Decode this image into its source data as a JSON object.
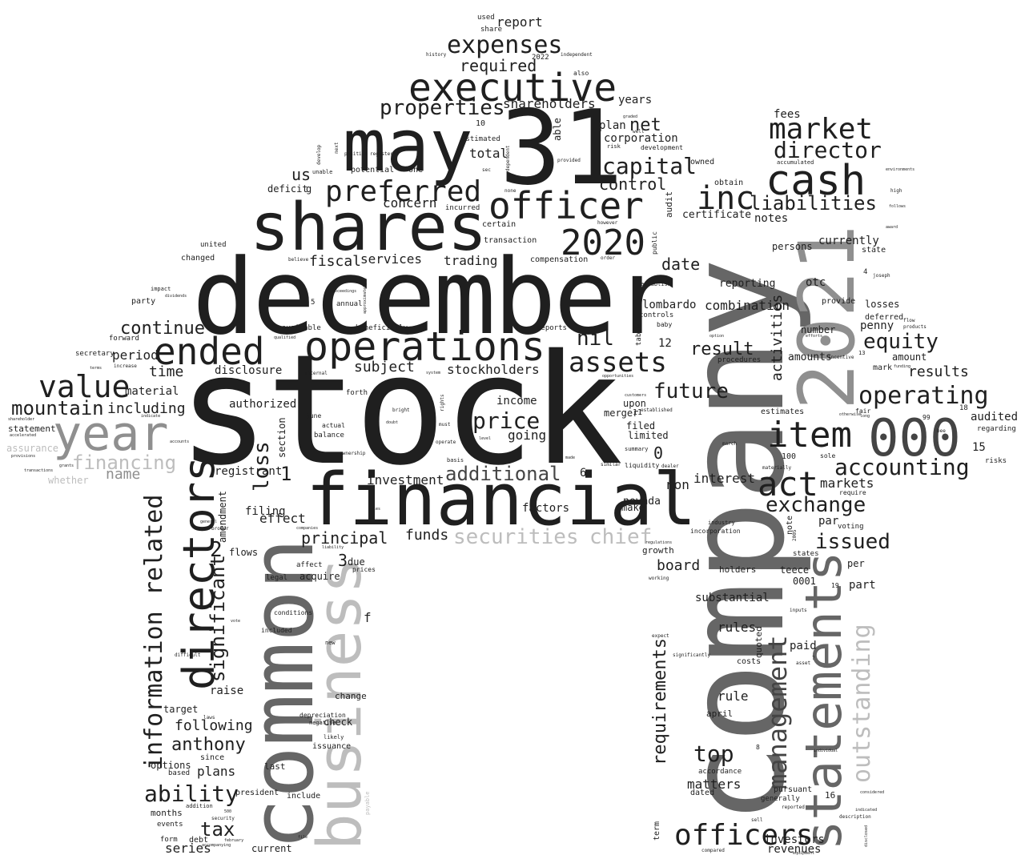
{
  "cloud": {
    "words": {
      "stock": "stock",
      "company": "company",
      "december": "december",
      "common": "common",
      "shares": "shares",
      "thirty_one": "31",
      "may": "may",
      "financial": "financial",
      "business": "business",
      "year_2021": "2021",
      "statements": "statements",
      "executive": "executive",
      "operations": "operations",
      "officer": "officer",
      "cash": "cash",
      "inc": "inc",
      "directors": "directors",
      "ended": "ended",
      "year": "year",
      "preferred": "preferred",
      "year_2020": "2020",
      "item": "item",
      "thousand": "000",
      "management": "management",
      "value": "value",
      "market": "market",
      "director": "director",
      "officers": "officers",
      "assets": "assets",
      "act": "act",
      "outstanding": "outstanding",
      "expenses": "expenses",
      "liabilities": "liabilities",
      "capital": "capital",
      "information": "information",
      "related": "related",
      "operating": "operating",
      "accounting": "accounting",
      "exchange": "exchange",
      "mountain": "mountain",
      "financing": "financing",
      "securities": "securities",
      "chief": "chief",
      "additional": "additional",
      "price": "price",
      "future": "future",
      "equity": "equity",
      "properties": "properties",
      "continue": "continue",
      "significant": "significant",
      "ability": "ability",
      "anthony": "anthony",
      "requirements": "requirements",
      "top": "top",
      "loss": "loss",
      "issued": "issued",
      "result": "result",
      "nil": "nil",
      "net": "net",
      "control": "control",
      "required": "required",
      "shareholders": "shareholders",
      "tax": "tax",
      "including": "including",
      "name": "name",
      "time": "time",
      "period": "period",
      "subject": "subject",
      "stockholders": "stockholders",
      "fiscal": "fiscal",
      "services": "services",
      "trading": "trading",
      "concern": "concern",
      "us": "us",
      "date": "date",
      "combination": "combination",
      "results": "results",
      "penny": "penny",
      "activities": "activities",
      "interest": "interest",
      "markets": "markets",
      "investment": "investment",
      "principal": "principal",
      "funds": "funds",
      "effect": "effect",
      "following": "following",
      "plans": "plans",
      "series": "series",
      "board": "board",
      "substantial": "substantial",
      "rules": "rules",
      "rule": "rule",
      "matters": "matters",
      "investors": "investors",
      "revenues": "revenues",
      "report": "report",
      "years": "years",
      "audited": "audited",
      "material": "material",
      "authorized": "authorized",
      "disclosure": "disclosure",
      "income": "income",
      "going": "going",
      "certificate": "certificate",
      "notes": "notes",
      "currently": "currently",
      "total": "total",
      "corporation": "corporation",
      "plan": "plan",
      "fees": "fees",
      "reporting": "reporting",
      "otc": "otc",
      "lombardo": "lombardo",
      "amounts": "amounts",
      "losses": "losses",
      "number": "number",
      "amount": "amount",
      "deferred": "deferred",
      "mark": "mark",
      "estimates": "estimates",
      "filed": "filed",
      "limited": "limited",
      "merger": "merger",
      "upon": "upon",
      "nevada": "nevada",
      "non": "non",
      "factors": "factors",
      "make": "make",
      "growth": "growth",
      "holders": "holders",
      "teece": "teece",
      "part": "part",
      "per": "per",
      "par": "par",
      "voting": "voting",
      "paid": "paid",
      "quoted": "quoted",
      "costs": "costs",
      "april": "april",
      "dated": "dated",
      "accordance": "accordance",
      "pursuant": "pursuant",
      "generally": "generally",
      "term": "term",
      "raise": "raise",
      "target": "target",
      "options": "options",
      "based": "based",
      "since": "since",
      "last": "last",
      "include": "include",
      "president": "president",
      "months": "months",
      "events": "events",
      "form": "form",
      "debt": "debt",
      "current": "current",
      "issuance": "issuance",
      "check": "check",
      "change": "change",
      "depreciation": "depreciation",
      "negative": "negative",
      "likely": "likely",
      "acquire": "acquire",
      "legal": "legal",
      "affect": "affect",
      "due": "due",
      "prices": "prices",
      "flows": "flows",
      "amendment": "amendment",
      "registrant": "registrant",
      "filing": "filing",
      "section": "section",
      "balance": "balance",
      "actual": "actual",
      "june": "june",
      "forth": "forth",
      "beneficially": "beneficially",
      "available": "available",
      "annual": "annual",
      "statement": "statement",
      "assurance": "assurance",
      "whether": "whether",
      "forward": "forward",
      "secretary": "secretary",
      "party": "party",
      "changed": "changed",
      "united": "united",
      "deficit": "deficit",
      "potential": "potential",
      "one": "one",
      "estimated": "estimated",
      "able": "able",
      "incurred": "incurred",
      "certain": "certain",
      "transaction": "transaction",
      "compensation": "compensation",
      "audit": "audit",
      "public": "public",
      "owned": "owned",
      "obtain": "obtain",
      "persons": "persons",
      "state": "state",
      "provide": "provide",
      "controls": "controls",
      "baby": "baby",
      "table": "table",
      "reports": "reports",
      "industry": "industry",
      "incorporation": "incorporation",
      "note": "note",
      "states": "states",
      "also": "also",
      "share": "share",
      "used": "used",
      "history": "history",
      "independent": "independent",
      "development": "development",
      "risk": "risk",
      "establish": "establish",
      "accumulated": "accumulated",
      "regarding": "regarding",
      "risks": "risks",
      "sole": "sole",
      "fair": "fair",
      "require": "require",
      "incentive": "incentive",
      "procedures": "procedures",
      "summary": "summary",
      "similar": "similar",
      "liquidity": "liquidity",
      "established": "established",
      "dealer": "dealer",
      "materially": "materially",
      "march": "march",
      "ownership": "ownership",
      "basis": "basis",
      "operate": "operate",
      "must": "must",
      "rights": "rights",
      "level": "level",
      "made": "made",
      "bright": "bright",
      "doubt": "doubt",
      "system": "system",
      "internal": "internal",
      "increase": "increase",
      "terms": "terms",
      "impact": "impact",
      "dividends": "dividends",
      "believe": "believe",
      "conditions": "conditions",
      "included": "included",
      "new": "new",
      "difficult": "difficult",
      "laws": "laws",
      "vote": "vote",
      "security": "security",
      "accompanying": "accompanying",
      "february": "february",
      "file": "file",
      "addition": "addition",
      "payable": "payable",
      "liability": "liability",
      "broker": "broker",
      "general": "general",
      "companies": "companies",
      "sales": "sales",
      "expect": "expect",
      "significantly": "significantly",
      "working": "working",
      "regulations": "regulations",
      "asset": "asset",
      "inputs": "inputs",
      "reported": "reported",
      "sell": "sell",
      "compared": "compared",
      "description": "description",
      "joseph": "joseph",
      "provided": "provided",
      "however": "however",
      "order": "order",
      "sec": "sec",
      "none": "none",
      "registered": "registered",
      "position": "position",
      "develop": "develop",
      "unable": "unable",
      "next": "next",
      "dependent": "dependent",
      "well": "well",
      "graded": "graded",
      "qualified": "qualified",
      "approximately": "approximately",
      "proceedings": "proceedings",
      "accounts": "accounts",
      "provisions": "provisions",
      "transactions": "transactions",
      "grants": "grants",
      "indicate": "indicate",
      "accelerated": "accelerated",
      "shareholder": "shareholder",
      "environments": "environments",
      "high": "high",
      "follows": "follows",
      "award": "award",
      "flow": "flow",
      "products": "products",
      "funding": "funding",
      "bee": "bee",
      "otherwise": "otherwise",
      "long": "long",
      "periods": "periods",
      "option": "option",
      "efforts": "efforts",
      "opportunities": "opportunities",
      "customers": "customers",
      "individual": "individual",
      "considered": "considered",
      "indicated": "indicated",
      "disclosed": "disclosed",
      "equipment": "equipment",
      "n2022": "2022",
      "n10": "10",
      "n2": "2",
      "n1": "1",
      "n0": "0",
      "n3": "3",
      "n12": "12",
      "n15": "15",
      "n100": "100",
      "n0001": "0001",
      "n19": "19",
      "n18": "18",
      "n99": "99",
      "n6": "6",
      "n5": "5",
      "n13": "13",
      "n4": "4",
      "n30": "30",
      "n16": "16",
      "n8": "8",
      "n7": "7",
      "n2005": "2005",
      "n500": "500",
      "n11": "11",
      "f": "f",
      "g": "g"
    }
  }
}
